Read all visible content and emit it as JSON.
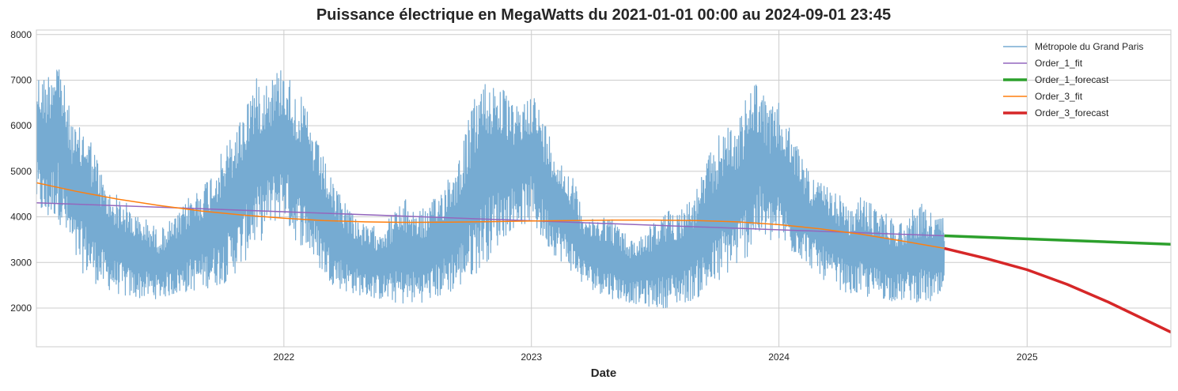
{
  "chart_data": {
    "type": "line",
    "title": "Puissance électrique en MegaWatts du 2021-01-01 00:00 au 2024-09-01 23:45",
    "xlabel": "Date",
    "ylabel": "",
    "xlim": [
      "2021-01-01",
      "2025-08-01"
    ],
    "ylim": [
      1150,
      8100
    ],
    "x_ticks": [
      {
        "date": "2022-01-01",
        "label": "2022"
      },
      {
        "date": "2023-01-01",
        "label": "2023"
      },
      {
        "date": "2024-01-01",
        "label": "2024"
      },
      {
        "date": "2025-01-01",
        "label": "2025"
      }
    ],
    "y_ticks": [
      {
        "value": 2000,
        "label": "2000"
      },
      {
        "value": 3000,
        "label": "3000"
      },
      {
        "value": 4000,
        "label": "4000"
      },
      {
        "value": 5000,
        "label": "5000"
      },
      {
        "value": 6000,
        "label": "6000"
      },
      {
        "value": 7000,
        "label": "7000"
      },
      {
        "value": 8000,
        "label": "8000"
      }
    ],
    "grid": true,
    "legend_position": "top-right",
    "series": [
      {
        "name": "Métropole du Grand Paris",
        "kind": "band",
        "color": "#76abd2",
        "x": [
          "2021-01-01",
          "2021-01-15",
          "2021-02-01",
          "2021-02-15",
          "2021-03-01",
          "2021-03-15",
          "2021-04-01",
          "2021-04-15",
          "2021-05-01",
          "2021-05-15",
          "2021-06-01",
          "2021-06-15",
          "2021-07-01",
          "2021-07-15",
          "2021-08-01",
          "2021-08-15",
          "2021-09-01",
          "2021-09-15",
          "2021-10-01",
          "2021-10-15",
          "2021-11-01",
          "2021-11-15",
          "2021-12-01",
          "2021-12-15",
          "2022-01-01",
          "2022-01-15",
          "2022-02-01",
          "2022-02-15",
          "2022-03-01",
          "2022-03-15",
          "2022-04-01",
          "2022-04-15",
          "2022-05-01",
          "2022-05-15",
          "2022-06-01",
          "2022-06-15",
          "2022-07-01",
          "2022-07-15",
          "2022-08-01",
          "2022-08-15",
          "2022-09-01",
          "2022-09-15",
          "2022-10-01",
          "2022-10-15",
          "2022-11-01",
          "2022-11-15",
          "2022-12-01",
          "2022-12-15",
          "2023-01-01",
          "2023-01-15",
          "2023-02-01",
          "2023-02-15",
          "2023-03-01",
          "2023-03-15",
          "2023-04-01",
          "2023-04-15",
          "2023-05-01",
          "2023-05-15",
          "2023-06-01",
          "2023-06-15",
          "2023-07-01",
          "2023-07-15",
          "2023-08-01",
          "2023-08-15",
          "2023-09-01",
          "2023-09-15",
          "2023-10-01",
          "2023-10-15",
          "2023-11-01",
          "2023-11-15",
          "2023-12-01",
          "2023-12-15",
          "2024-01-01",
          "2024-01-15",
          "2024-02-01",
          "2024-02-15",
          "2024-03-01",
          "2024-03-15",
          "2024-04-01",
          "2024-04-15",
          "2024-05-01",
          "2024-05-15",
          "2024-06-01",
          "2024-06-15",
          "2024-07-01",
          "2024-07-15",
          "2024-08-01",
          "2024-08-15",
          "2024-09-01"
        ],
        "high": [
          7200,
          7100,
          7750,
          6600,
          5900,
          6100,
          5300,
          4600,
          4500,
          4300,
          4000,
          3950,
          3700,
          3900,
          4100,
          4500,
          4700,
          5000,
          5400,
          5800,
          6300,
          7000,
          7100,
          7150,
          7400,
          6900,
          6500,
          5800,
          5300,
          4700,
          4400,
          4100,
          3800,
          3800,
          3900,
          4200,
          4400,
          4200,
          4200,
          4500,
          5000,
          5300,
          6200,
          6900,
          7100,
          7000,
          6500,
          6400,
          6900,
          6300,
          5700,
          5200,
          5000,
          4300,
          3950,
          4100,
          4000,
          3700,
          3500,
          3700,
          3900,
          4100,
          4200,
          4300,
          4600,
          5200,
          5700,
          6100,
          6000,
          6700,
          7100,
          6400,
          6500,
          6000,
          5500,
          5000,
          4800,
          4600,
          4500,
          4100,
          4500,
          4300,
          4200,
          4000,
          3900,
          4200,
          4300,
          4100,
          4000
        ],
        "low": [
          4200,
          3800,
          4000,
          3400,
          2900,
          2700,
          2500,
          2400,
          2300,
          2200,
          2200,
          2200,
          2200,
          2250,
          2300,
          2350,
          2400,
          2450,
          2500,
          2650,
          2900,
          3300,
          3500,
          3800,
          4000,
          3500,
          3300,
          3000,
          2700,
          2500,
          2350,
          2300,
          2250,
          2200,
          2150,
          2100,
          2050,
          2100,
          2150,
          2200,
          2300,
          2400,
          2600,
          2800,
          3100,
          3400,
          3700,
          3800,
          3850,
          3500,
          3200,
          3000,
          2800,
          2550,
          2400,
          2300,
          2200,
          2150,
          2100,
          2050,
          2000,
          2000,
          2050,
          2100,
          2200,
          2300,
          2450,
          2700,
          2900,
          3100,
          3500,
          3400,
          3400,
          3200,
          3100,
          2900,
          2700,
          2500,
          2400,
          2300,
          2250,
          2200,
          2200,
          2150,
          2150,
          2150,
          2100,
          2100,
          2150
        ]
      },
      {
        "name": "Order_1_fit",
        "color": "#9467bd",
        "width": 1.5,
        "x": [
          "2021-01-01",
          "2024-09-01"
        ],
        "y": [
          4310,
          3585
        ]
      },
      {
        "name": "Order_1_forecast",
        "color": "#2ca02c",
        "width": 3.5,
        "x": [
          "2024-09-01",
          "2025-08-01"
        ],
        "y": [
          3585,
          3400
        ]
      },
      {
        "name": "Order_3_fit",
        "color": "#ff7f0e",
        "width": 1.5,
        "x": [
          "2021-01-01",
          "2021-03-01",
          "2021-05-01",
          "2021-07-01",
          "2021-09-01",
          "2021-11-01",
          "2022-01-01",
          "2022-03-01",
          "2022-05-01",
          "2022-07-01",
          "2022-09-01",
          "2022-11-01",
          "2023-01-01",
          "2023-03-01",
          "2023-05-01",
          "2023-07-01",
          "2023-09-01",
          "2023-11-01",
          "2024-01-01",
          "2024-03-01",
          "2024-05-01",
          "2024-07-01",
          "2024-09-01"
        ],
        "y": [
          4750,
          4560,
          4390,
          4250,
          4130,
          4040,
          3970,
          3920,
          3890,
          3880,
          3885,
          3895,
          3910,
          3920,
          3930,
          3930,
          3920,
          3890,
          3830,
          3740,
          3620,
          3470,
          3310
        ]
      },
      {
        "name": "Order_3_forecast",
        "color": "#d62728",
        "width": 3.5,
        "x": [
          "2024-09-01",
          "2024-11-01",
          "2025-01-01",
          "2025-03-01",
          "2025-05-01",
          "2025-08-01"
        ],
        "y": [
          3310,
          3090,
          2840,
          2520,
          2130,
          1470
        ]
      }
    ]
  }
}
